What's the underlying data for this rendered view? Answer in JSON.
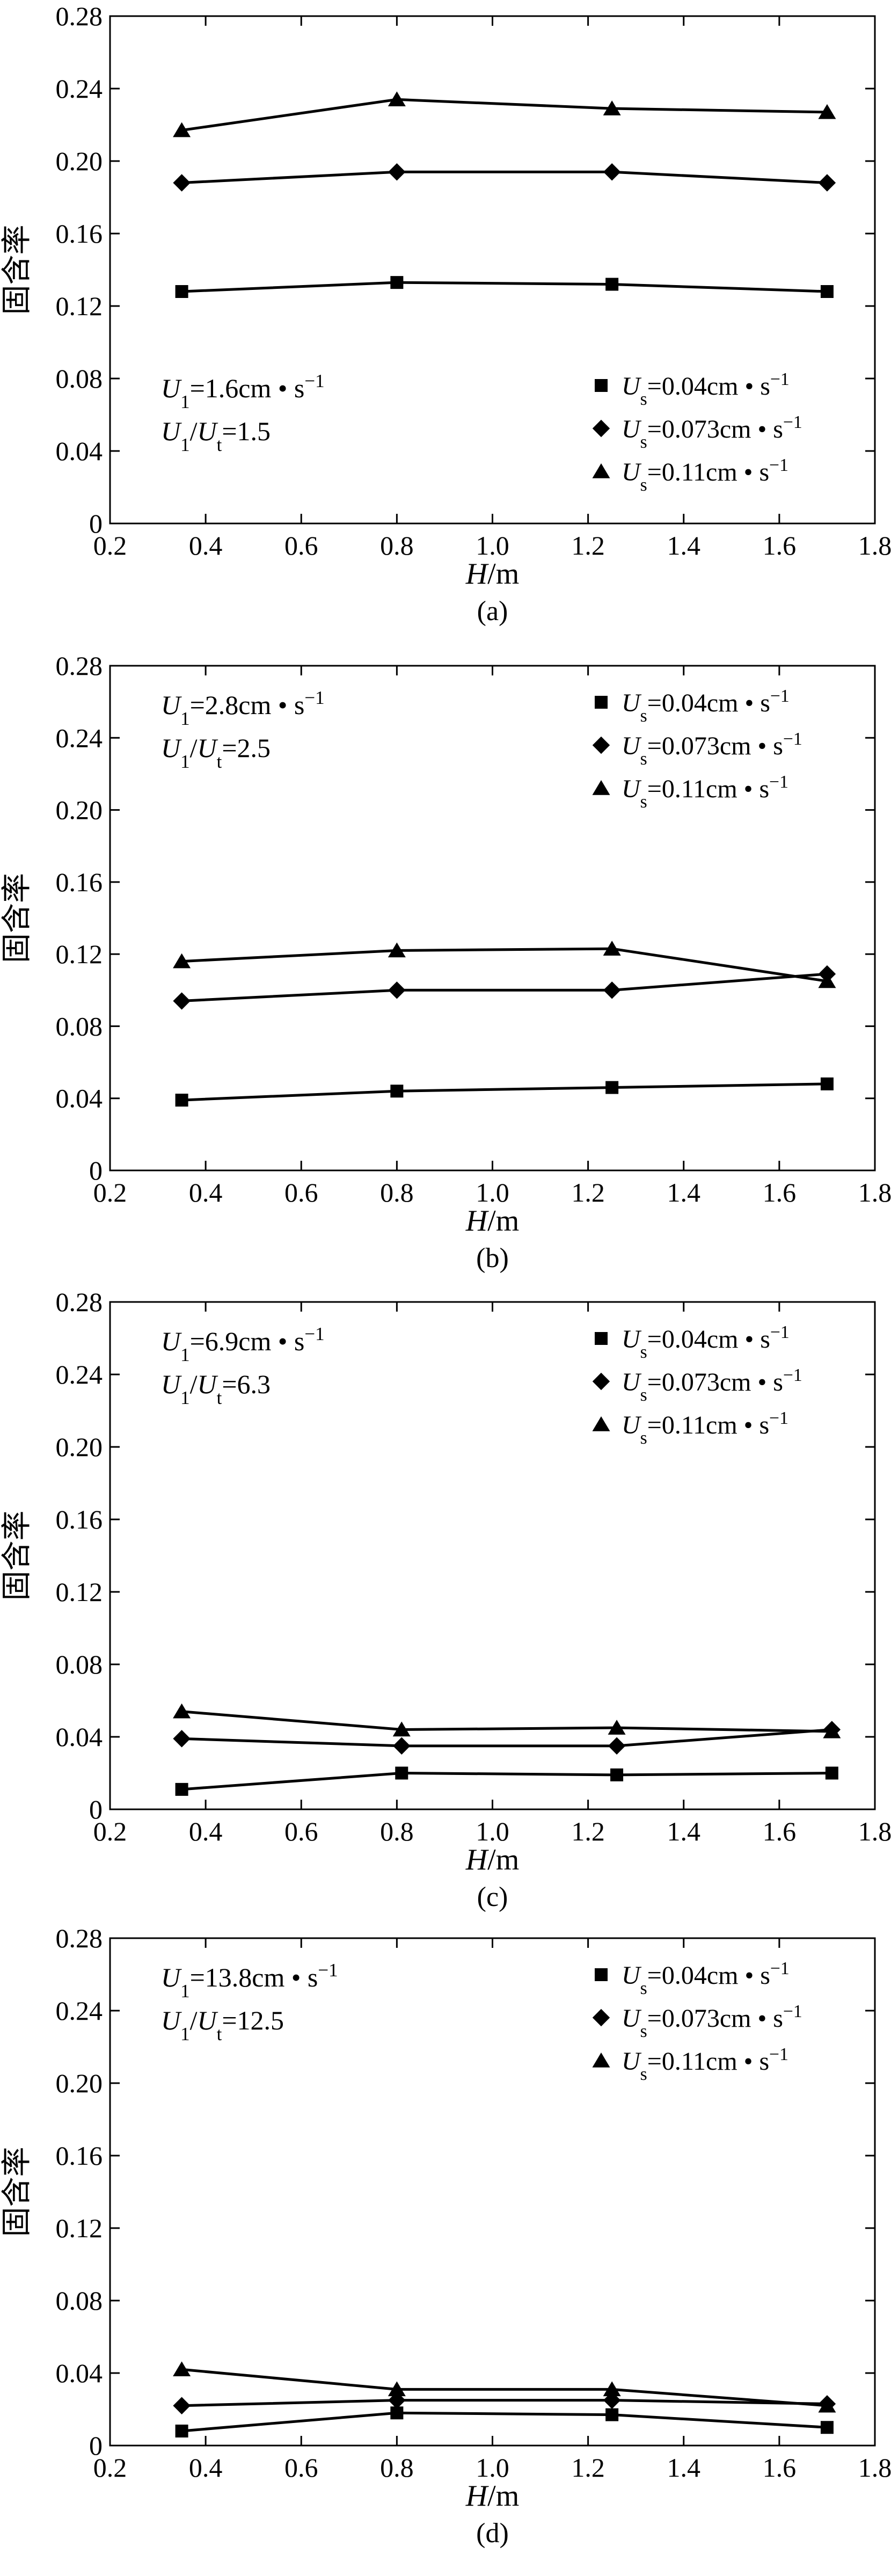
{
  "chart_data": [
    {
      "type": "line",
      "caption": "(a)",
      "xlabel": "H/m",
      "ylabel": "固含率",
      "xlim": [
        0.2,
        1.8
      ],
      "ylim": [
        0,
        0.28
      ],
      "xticks": [
        "0.2",
        "0.4",
        "0.6",
        "0.8",
        "1.0",
        "1.2",
        "1.4",
        "1.6",
        "1.8"
      ],
      "yticks": [
        "0",
        "0.04",
        "0.08",
        "0.12",
        "0.16",
        "0.20",
        "0.24",
        "0.28"
      ],
      "annotation": [
        "U1=1.6cm • s−1",
        "U1/Ut=1.5"
      ],
      "legend_position": "bottom-right",
      "series": [
        {
          "name": "Us=0.04cm • s−1",
          "marker": "square",
          "x": [
            0.35,
            0.8,
            1.25,
            1.7
          ],
          "y": [
            0.128,
            0.133,
            0.132,
            0.128
          ]
        },
        {
          "name": "Us=0.073cm • s−1",
          "marker": "diamond",
          "x": [
            0.35,
            0.8,
            1.25,
            1.7
          ],
          "y": [
            0.188,
            0.194,
            0.194,
            0.188
          ]
        },
        {
          "name": "Us=0.11cm • s−1",
          "marker": "triangle",
          "x": [
            0.35,
            0.8,
            1.25,
            1.7
          ],
          "y": [
            0.217,
            0.234,
            0.229,
            0.227
          ]
        }
      ]
    },
    {
      "type": "line",
      "caption": "(b)",
      "xlabel": "H/m",
      "ylabel": "固含率",
      "xlim": [
        0.2,
        1.8
      ],
      "ylim": [
        0,
        0.28
      ],
      "xticks": [
        "0.2",
        "0.4",
        "0.6",
        "0.8",
        "1.0",
        "1.2",
        "1.4",
        "1.6",
        "1.8"
      ],
      "yticks": [
        "0",
        "0.04",
        "0.08",
        "0.12",
        "0.16",
        "0.20",
        "0.24",
        "0.28"
      ],
      "annotation": [
        "U1=2.8cm • s−1",
        "U1/Ut=2.5"
      ],
      "legend_position": "top-right",
      "series": [
        {
          "name": "Us=0.04cm • s−1",
          "marker": "square",
          "x": [
            0.35,
            0.8,
            1.25,
            1.7
          ],
          "y": [
            0.039,
            0.044,
            0.046,
            0.048
          ]
        },
        {
          "name": "Us=0.073cm • s−1",
          "marker": "diamond",
          "x": [
            0.35,
            0.8,
            1.25,
            1.7
          ],
          "y": [
            0.094,
            0.1,
            0.1,
            0.109
          ]
        },
        {
          "name": "Us=0.11cm • s−1",
          "marker": "triangle",
          "x": [
            0.35,
            0.8,
            1.25,
            1.7
          ],
          "y": [
            0.116,
            0.122,
            0.123,
            0.105
          ]
        }
      ]
    },
    {
      "type": "line",
      "caption": "(c)",
      "xlabel": "H/m",
      "ylabel": "固含率",
      "xlim": [
        0.2,
        1.8
      ],
      "ylim": [
        0,
        0.28
      ],
      "xticks": [
        "0.2",
        "0.4",
        "0.6",
        "0.8",
        "1.0",
        "1.2",
        "1.4",
        "1.6",
        "1.8"
      ],
      "yticks": [
        "0",
        "0.04",
        "0.08",
        "0.12",
        "0.16",
        "0.20",
        "0.24",
        "0.28"
      ],
      "annotation": [
        "U1=6.9cm • s−1",
        "U1/Ut=6.3"
      ],
      "legend_position": "top-right",
      "series": [
        {
          "name": "Us=0.04cm • s−1",
          "marker": "square",
          "x": [
            0.35,
            0.81,
            1.26,
            1.71
          ],
          "y": [
            0.011,
            0.02,
            0.019,
            0.02
          ]
        },
        {
          "name": "Us=0.073cm • s−1",
          "marker": "diamond",
          "x": [
            0.35,
            0.81,
            1.26,
            1.71
          ],
          "y": [
            0.039,
            0.035,
            0.035,
            0.044
          ]
        },
        {
          "name": "Us=0.11cm • s−1",
          "marker": "triangle",
          "x": [
            0.35,
            0.81,
            1.26,
            1.71
          ],
          "y": [
            0.054,
            0.044,
            0.045,
            0.043
          ]
        }
      ]
    },
    {
      "type": "line",
      "caption": "(d)",
      "xlabel": "H/m",
      "ylabel": "固含率",
      "xlim": [
        0.2,
        1.8
      ],
      "ylim": [
        0,
        0.28
      ],
      "xticks": [
        "0.2",
        "0.4",
        "0.6",
        "0.8",
        "1.0",
        "1.2",
        "1.4",
        "1.6",
        "1.8"
      ],
      "yticks": [
        "0",
        "0.04",
        "0.08",
        "0.12",
        "0.16",
        "0.20",
        "0.24",
        "0.28"
      ],
      "annotation": [
        "U1=13.8cm • s−1",
        "U1/Ut=12.5"
      ],
      "legend_position": "top-right",
      "series": [
        {
          "name": "Us=0.04cm • s−1",
          "marker": "square",
          "x": [
            0.35,
            0.8,
            1.25,
            1.7
          ],
          "y": [
            0.008,
            0.018,
            0.017,
            0.01
          ]
        },
        {
          "name": "Us=0.073cm • s−1",
          "marker": "diamond",
          "x": [
            0.35,
            0.8,
            1.25,
            1.7
          ],
          "y": [
            0.022,
            0.025,
            0.025,
            0.023
          ]
        },
        {
          "name": "Us=0.11cm • s−1",
          "marker": "triangle",
          "x": [
            0.35,
            0.8,
            1.25,
            1.7
          ],
          "y": [
            0.042,
            0.031,
            0.031,
            0.022
          ]
        }
      ]
    }
  ]
}
